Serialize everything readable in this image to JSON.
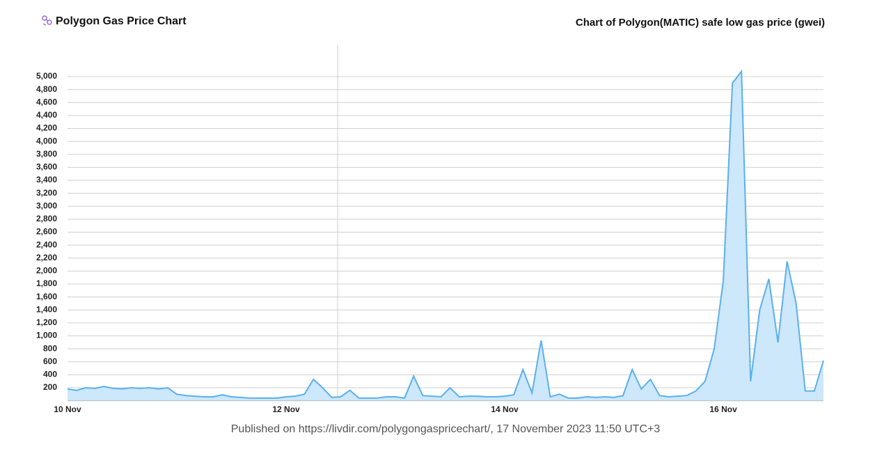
{
  "chart_data": {
    "type": "area",
    "title": "Polygon Gas Price Chart",
    "subtitle": "Chart of Polygon(MATIC) safe low gas price (gwei)",
    "footer": "Published on https://livdir.com/polygongaspricechart/, 17 November 2023 11:50 UTC+3",
    "color": "#5ab0ee",
    "fill": "#cde7fb",
    "grid": true,
    "ylim": [
      0,
      5500
    ],
    "yticks": [
      200,
      400,
      600,
      800,
      {
        "value": 1000,
        "label": "1,000"
      },
      {
        "value": 1200,
        "label": "1,200"
      },
      {
        "value": 1400,
        "label": "1,400"
      },
      {
        "value": 1600,
        "label": "1,600"
      },
      {
        "value": 1800,
        "label": "1,800"
      },
      {
        "value": 2000,
        "label": "2,000"
      },
      {
        "value": 2200,
        "label": "2,200"
      },
      {
        "value": 2400,
        "label": "2,400"
      },
      {
        "value": 2600,
        "label": "2,600"
      },
      {
        "value": 2800,
        "label": "2,800"
      },
      {
        "value": 3000,
        "label": "3,000"
      },
      {
        "value": 3200,
        "label": "3,200"
      },
      {
        "value": 3400,
        "label": "3,400"
      },
      {
        "value": 3600,
        "label": "3,600"
      },
      {
        "value": 3800,
        "label": "3,800"
      },
      {
        "value": 4000,
        "label": "4,000"
      },
      {
        "value": 4200,
        "label": "4,200"
      },
      {
        "value": 4400,
        "label": "4,400"
      },
      {
        "value": 4600,
        "label": "4,600"
      },
      {
        "value": 4800,
        "label": "4,800"
      },
      {
        "value": 5000,
        "label": "5,000"
      }
    ],
    "categories": [
      "10 Nov",
      null,
      null,
      null,
      null,
      null,
      null,
      null,
      null,
      null,
      null,
      null,
      null,
      null,
      null,
      null,
      null,
      null,
      null,
      null,
      null,
      null,
      null,
      null,
      "12 Nov",
      null,
      null,
      null,
      null,
      null,
      null,
      null,
      null,
      null,
      null,
      null,
      null,
      null,
      null,
      null,
      null,
      null,
      null,
      null,
      null,
      null,
      null,
      null,
      "14 Nov",
      null,
      null,
      null,
      null,
      null,
      null,
      null,
      null,
      null,
      null,
      null,
      null,
      null,
      null,
      null,
      null,
      null,
      null,
      null,
      null,
      null,
      null,
      null,
      "16 Nov",
      null,
      null,
      null,
      null,
      null,
      null,
      null,
      null,
      null,
      null,
      null
    ],
    "values": [
      180,
      160,
      200,
      190,
      220,
      190,
      180,
      200,
      190,
      200,
      180,
      200,
      100,
      80,
      70,
      60,
      60,
      90,
      60,
      50,
      40,
      40,
      40,
      40,
      60,
      70,
      100,
      330,
      200,
      50,
      60,
      160,
      40,
      40,
      40,
      60,
      60,
      40,
      380,
      80,
      70,
      60,
      200,
      60,
      70,
      70,
      60,
      60,
      70,
      90,
      480,
      120,
      930,
      60,
      100,
      40,
      40,
      60,
      50,
      60,
      50,
      80,
      480,
      180,
      330,
      80,
      60,
      70,
      80,
      150,
      300,
      800,
      1850,
      4900,
      5080,
      300,
      1400,
      1880,
      900,
      2150,
      1500,
      150,
      150,
      620
    ]
  }
}
